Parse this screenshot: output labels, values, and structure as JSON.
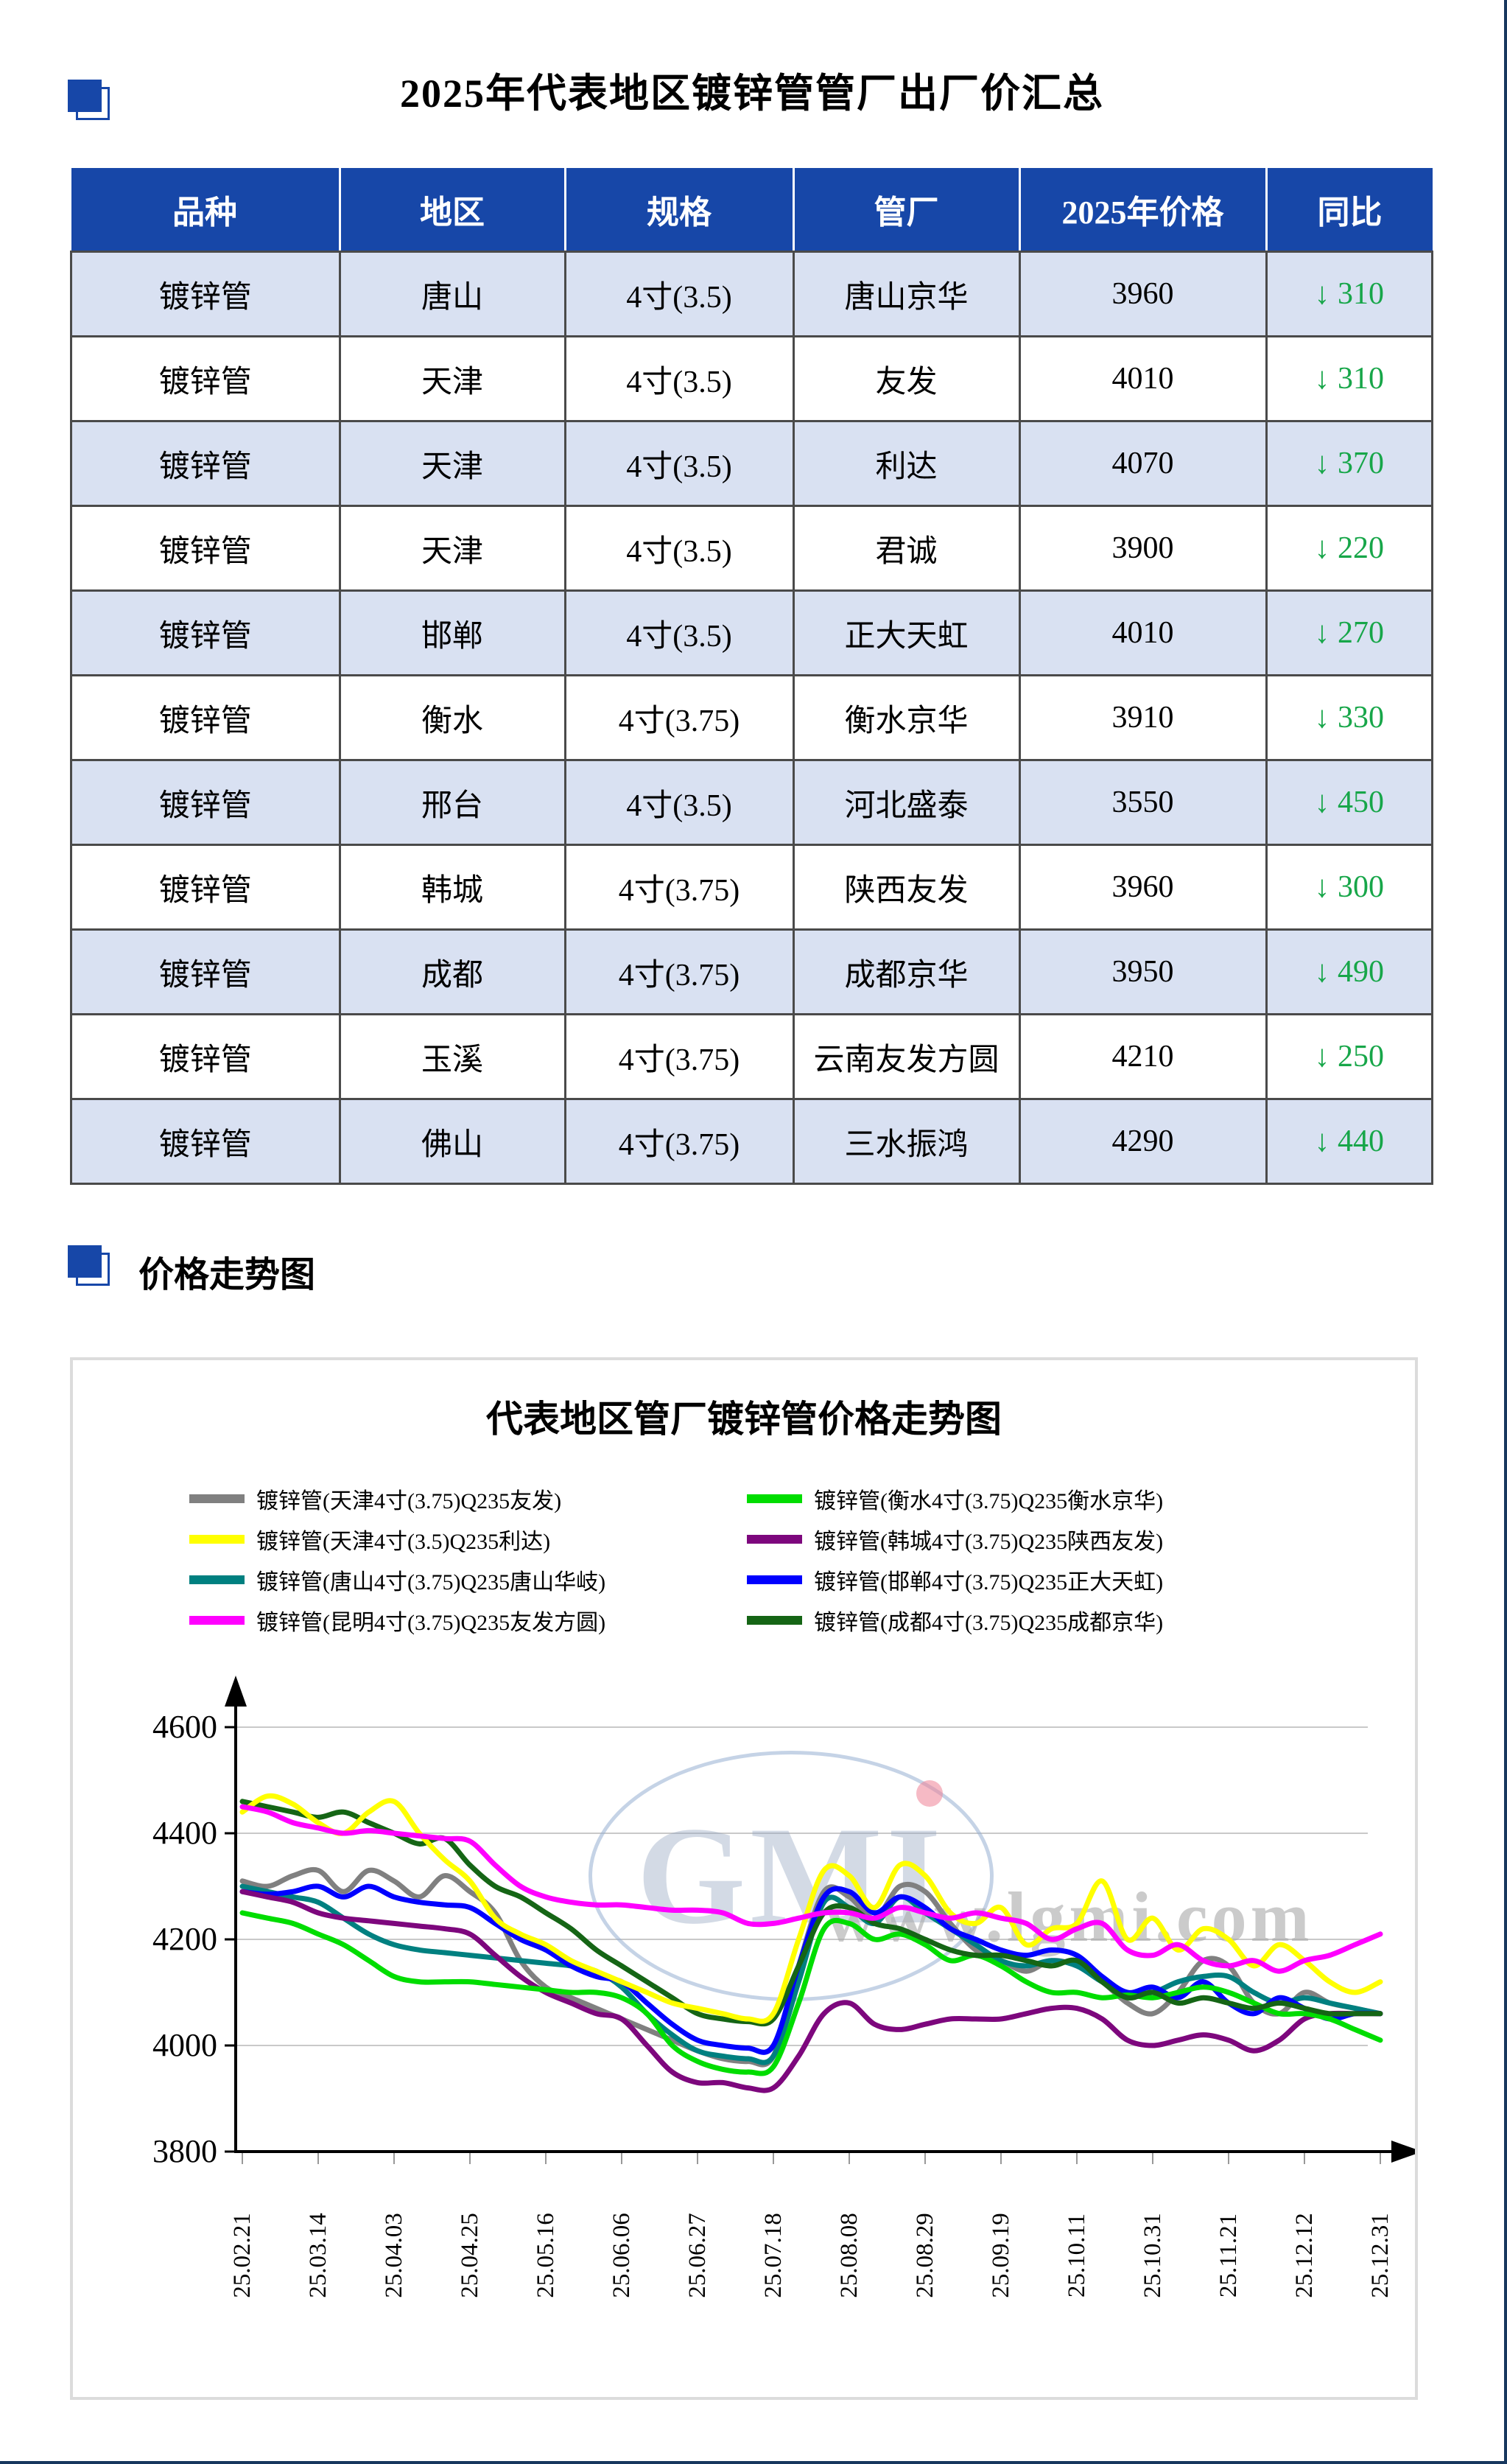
{
  "page": {
    "title": "2025年代表地区镀锌管管厂出厂价汇总",
    "section2_title": "价格走势图"
  },
  "table": {
    "headers": [
      "品种",
      "地区",
      "规格",
      "管厂",
      "2025年价格",
      "同比"
    ],
    "change_arrow": "↓",
    "colors": {
      "header_bg": "#1747A8",
      "row_alt_bg": "#D9E1F2",
      "change_green": "#17A649"
    },
    "rows": [
      {
        "variety": "镀锌管",
        "region": "唐山",
        "spec": "4寸(3.5)",
        "factory": "唐山京华",
        "price": 3960,
        "change": 310
      },
      {
        "variety": "镀锌管",
        "region": "天津",
        "spec": "4寸(3.5)",
        "factory": "友发",
        "price": 4010,
        "change": 310
      },
      {
        "variety": "镀锌管",
        "region": "天津",
        "spec": "4寸(3.5)",
        "factory": "利达",
        "price": 4070,
        "change": 370
      },
      {
        "variety": "镀锌管",
        "region": "天津",
        "spec": "4寸(3.5)",
        "factory": "君诚",
        "price": 3900,
        "change": 220
      },
      {
        "variety": "镀锌管",
        "region": "邯郸",
        "spec": "4寸(3.5)",
        "factory": "正大天虹",
        "price": 4010,
        "change": 270
      },
      {
        "variety": "镀锌管",
        "region": "衡水",
        "spec": "4寸(3.75)",
        "factory": "衡水京华",
        "price": 3910,
        "change": 330
      },
      {
        "variety": "镀锌管",
        "region": "邢台",
        "spec": "4寸(3.5)",
        "factory": "河北盛泰",
        "price": 3550,
        "change": 450
      },
      {
        "variety": "镀锌管",
        "region": "韩城",
        "spec": "4寸(3.75)",
        "factory": "陕西友发",
        "price": 3960,
        "change": 300
      },
      {
        "variety": "镀锌管",
        "region": "成都",
        "spec": "4寸(3.75)",
        "factory": "成都京华",
        "price": 3950,
        "change": 490
      },
      {
        "variety": "镀锌管",
        "region": "玉溪",
        "spec": "4寸(3.75)",
        "factory": "云南友发方圆",
        "price": 4210,
        "change": 250
      },
      {
        "variety": "镀锌管",
        "region": "佛山",
        "spec": "4寸(3.75)",
        "factory": "三水振鸿",
        "price": 4290,
        "change": 440
      }
    ]
  },
  "chart_data": {
    "type": "line",
    "title": "代表地区管厂镀锌管价格走势图",
    "ylim": [
      3800,
      4600
    ],
    "y_ticks": [
      4600,
      4400,
      4200,
      4000,
      3800
    ],
    "grid": true,
    "legend_position": "top-two-columns",
    "watermark": {
      "logo": "GMI",
      "url_text": "www.lgmi.com"
    },
    "x_labels": [
      "25.02.21",
      "25.03.14",
      "25.04.03",
      "25.04.25",
      "25.05.16",
      "25.06.06",
      "25.06.27",
      "25.07.18",
      "25.08.08",
      "25.08.29",
      "25.09.19",
      "25.10.11",
      "25.10.31",
      "25.11.21",
      "25.12.12",
      "25.12.31"
    ],
    "points_per_label": 3,
    "series": [
      {
        "name": "镀锌管(天津4寸(3.75)Q235友发)",
        "color": "#808080",
        "values": [
          4310,
          4300,
          4320,
          4330,
          4290,
          4330,
          4310,
          4280,
          4320,
          4290,
          4250,
          4160,
          4110,
          4090,
          4070,
          4050,
          4030,
          4010,
          3990,
          3975,
          3970,
          3980,
          4150,
          4290,
          4280,
          4240,
          4300,
          4290,
          4230,
          4180,
          4160,
          4140,
          4160,
          4150,
          4120,
          4080,
          4060,
          4100,
          4160,
          4150,
          4080,
          4060,
          4100,
          4080,
          4070,
          4060
        ]
      },
      {
        "name": "镀锌管(天津4寸(3.5)Q235利达)",
        "color": "#FFFF00",
        "values": [
          4440,
          4470,
          4455,
          4420,
          4400,
          4440,
          4460,
          4400,
          4350,
          4310,
          4240,
          4210,
          4190,
          4160,
          4140,
          4120,
          4100,
          4080,
          4070,
          4060,
          4050,
          4060,
          4200,
          4330,
          4320,
          4260,
          4340,
          4320,
          4250,
          4230,
          4260,
          4190,
          4220,
          4230,
          4310,
          4200,
          4240,
          4180,
          4220,
          4200,
          4150,
          4190,
          4160,
          4120,
          4100,
          4120
        ]
      },
      {
        "name": "镀锌管(唐山4寸(3.75)Q235唐山华岐)",
        "color": "#008080",
        "values": [
          4300,
          4290,
          4280,
          4270,
          4240,
          4210,
          4190,
          4180,
          4175,
          4170,
          4165,
          4160,
          4155,
          4150,
          4140,
          4110,
          4060,
          4020,
          3990,
          3980,
          3975,
          3980,
          4120,
          4270,
          4260,
          4230,
          4280,
          4250,
          4220,
          4190,
          4160,
          4150,
          4160,
          4150,
          4120,
          4100,
          4100,
          4120,
          4130,
          4130,
          4100,
          4080,
          4090,
          4080,
          4070,
          4060
        ]
      },
      {
        "name": "镀锌管(昆明4寸(3.75)Q235友发方圆)",
        "color": "#FF00FF",
        "values": [
          4450,
          4440,
          4420,
          4410,
          4400,
          4405,
          4400,
          4395,
          4390,
          4385,
          4340,
          4300,
          4280,
          4270,
          4265,
          4265,
          4260,
          4255,
          4255,
          4250,
          4230,
          4230,
          4240,
          4250,
          4250,
          4240,
          4260,
          4250,
          4240,
          4250,
          4240,
          4230,
          4200,
          4220,
          4230,
          4180,
          4170,
          4190,
          4160,
          4150,
          4160,
          4140,
          4160,
          4170,
          4190,
          4210
        ]
      },
      {
        "name": "镀锌管(衡水4寸(3.75)Q235衡水京华)",
        "color": "#00DD00",
        "values": [
          4250,
          4240,
          4230,
          4210,
          4190,
          4160,
          4130,
          4120,
          4120,
          4120,
          4115,
          4110,
          4105,
          4100,
          4100,
          4090,
          4060,
          4000,
          3970,
          3955,
          3950,
          3960,
          4080,
          4220,
          4230,
          4200,
          4210,
          4190,
          4160,
          4170,
          4150,
          4120,
          4100,
          4100,
          4090,
          4095,
          4090,
          4100,
          4110,
          4100,
          4080,
          4060,
          4060,
          4050,
          4030,
          4010
        ]
      },
      {
        "name": "镀锌管(韩城4寸(3.75)Q235陕西友发)",
        "color": "#7D077D",
        "values": [
          4290,
          4280,
          4270,
          4250,
          4240,
          4235,
          4230,
          4225,
          4220,
          4210,
          4170,
          4130,
          4100,
          4080,
          4060,
          4050,
          4000,
          3950,
          3930,
          3930,
          3920,
          3920,
          3980,
          4060,
          4080,
          4040,
          4030,
          4040,
          4050,
          4050,
          4050,
          4060,
          4070,
          4070,
          4050,
          4010,
          4000,
          4010,
          4020,
          4010,
          3990,
          4010,
          4050,
          4060,
          4060,
          4060
        ]
      },
      {
        "name": "镀锌管(邯郸4寸(3.75)Q235正大天虹)",
        "color": "#0000FF",
        "values": [
          4290,
          4285,
          4290,
          4300,
          4280,
          4300,
          4280,
          4270,
          4265,
          4260,
          4230,
          4200,
          4180,
          4150,
          4130,
          4120,
          4080,
          4040,
          4010,
          4000,
          3995,
          4000,
          4150,
          4280,
          4290,
          4250,
          4280,
          4260,
          4220,
          4200,
          4180,
          4170,
          4180,
          4170,
          4130,
          4100,
          4110,
          4090,
          4120,
          4080,
          4060,
          4090,
          4070,
          4050,
          4060,
          4060
        ]
      },
      {
        "name": "镀锌管(成都4寸(3.75)Q235成都京华)",
        "color": "#156515",
        "values": [
          4460,
          4450,
          4440,
          4430,
          4440,
          4420,
          4400,
          4380,
          4390,
          4340,
          4300,
          4280,
          4250,
          4220,
          4180,
          4150,
          4120,
          4090,
          4060,
          4050,
          4045,
          4050,
          4150,
          4250,
          4260,
          4230,
          4220,
          4200,
          4180,
          4170,
          4170,
          4160,
          4150,
          4160,
          4120,
          4090,
          4100,
          4080,
          4090,
          4080,
          4070,
          4080,
          4070,
          4060,
          4060,
          4060
        ]
      }
    ]
  }
}
